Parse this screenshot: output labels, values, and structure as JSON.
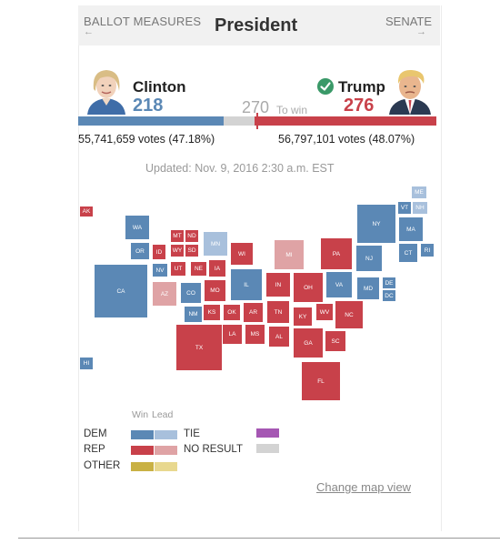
{
  "header": {
    "left_link": "BALLOT MEASURES",
    "left_arrow": "←",
    "title": "President",
    "right_link": "SENATE",
    "right_arrow": "→"
  },
  "candidates": {
    "clinton": {
      "name": "Clinton",
      "electoral_votes": "218",
      "popular_votes": "55,741,659 votes (47.18%)"
    },
    "trump": {
      "name": "Trump",
      "electoral_votes": "276",
      "popular_votes": "56,797,101 votes (48.07%)",
      "winner_icon": "check-circle-icon"
    }
  },
  "to_win": {
    "number": "270",
    "label": "To win"
  },
  "electoral_bar": {
    "dem_ev": 218,
    "rep_ev": 276,
    "total_ev": 538,
    "threshold": 270
  },
  "updated_text": "Updated: Nov. 9, 2016 2:30 a.m. EST",
  "colors": {
    "dem_win": "#5b88b5",
    "dem_lead": "#a8c0dc",
    "rep_win": "#c8414a",
    "rep_lead": "#dfa3a5",
    "other_win": "#c9b144",
    "other_lead": "#e8d88f",
    "tie": "#a557b3",
    "no_result": "#d3d3d3"
  },
  "map": {
    "states": [
      {
        "abbr": "AK",
        "status": "rep_win"
      },
      {
        "abbr": "HI",
        "status": "dem_win"
      },
      {
        "abbr": "WA",
        "status": "dem_win"
      },
      {
        "abbr": "OR",
        "status": "dem_win"
      },
      {
        "abbr": "CA",
        "status": "dem_win"
      },
      {
        "abbr": "ID",
        "status": "rep_win"
      },
      {
        "abbr": "NV",
        "status": "dem_win"
      },
      {
        "abbr": "MT",
        "status": "rep_win"
      },
      {
        "abbr": "ND",
        "status": "rep_win"
      },
      {
        "abbr": "WY",
        "status": "rep_win"
      },
      {
        "abbr": "SD",
        "status": "rep_win"
      },
      {
        "abbr": "UT",
        "status": "rep_win"
      },
      {
        "abbr": "NE",
        "status": "rep_win"
      },
      {
        "abbr": "AZ",
        "status": "rep_lead"
      },
      {
        "abbr": "CO",
        "status": "dem_win"
      },
      {
        "abbr": "KS",
        "status": "rep_win"
      },
      {
        "abbr": "NM",
        "status": "dem_win"
      },
      {
        "abbr": "OK",
        "status": "rep_win"
      },
      {
        "abbr": "TX",
        "status": "rep_win"
      },
      {
        "abbr": "MN",
        "status": "dem_lead"
      },
      {
        "abbr": "IA",
        "status": "rep_win"
      },
      {
        "abbr": "MO",
        "status": "rep_win"
      },
      {
        "abbr": "AR",
        "status": "rep_win"
      },
      {
        "abbr": "LA",
        "status": "rep_win"
      },
      {
        "abbr": "WI",
        "status": "rep_win"
      },
      {
        "abbr": "IL",
        "status": "dem_win"
      },
      {
        "abbr": "MS",
        "status": "rep_win"
      },
      {
        "abbr": "MI",
        "status": "rep_lead"
      },
      {
        "abbr": "IN",
        "status": "rep_win"
      },
      {
        "abbr": "KY",
        "status": "rep_win"
      },
      {
        "abbr": "TN",
        "status": "rep_win"
      },
      {
        "abbr": "AL",
        "status": "rep_win"
      },
      {
        "abbr": "OH",
        "status": "rep_win"
      },
      {
        "abbr": "WV",
        "status": "rep_win"
      },
      {
        "abbr": "GA",
        "status": "rep_win"
      },
      {
        "abbr": "FL",
        "status": "rep_win"
      },
      {
        "abbr": "PA",
        "status": "rep_win"
      },
      {
        "abbr": "VA",
        "status": "dem_win"
      },
      {
        "abbr": "NC",
        "status": "rep_win"
      },
      {
        "abbr": "SC",
        "status": "rep_win"
      },
      {
        "abbr": "NY",
        "status": "dem_win"
      },
      {
        "abbr": "NJ",
        "status": "dem_win"
      },
      {
        "abbr": "MD",
        "status": "dem_win"
      },
      {
        "abbr": "DE",
        "status": "dem_win"
      },
      {
        "abbr": "DC",
        "status": "dem_win"
      },
      {
        "abbr": "ME",
        "status": "dem_lead"
      },
      {
        "abbr": "VT",
        "status": "dem_win"
      },
      {
        "abbr": "NH",
        "status": "dem_lead"
      },
      {
        "abbr": "MA",
        "status": "dem_win"
      },
      {
        "abbr": "CT",
        "status": "dem_win"
      },
      {
        "abbr": "RI",
        "status": "dem_win"
      }
    ]
  },
  "legend": {
    "win_label": "Win",
    "lead_label": "Lead",
    "dem_label": "DEM",
    "rep_label": "REP",
    "other_label": "OTHER",
    "tie_label": "TIE",
    "no_result_label": "NO RESULT"
  },
  "change_map_view": "Change map view"
}
